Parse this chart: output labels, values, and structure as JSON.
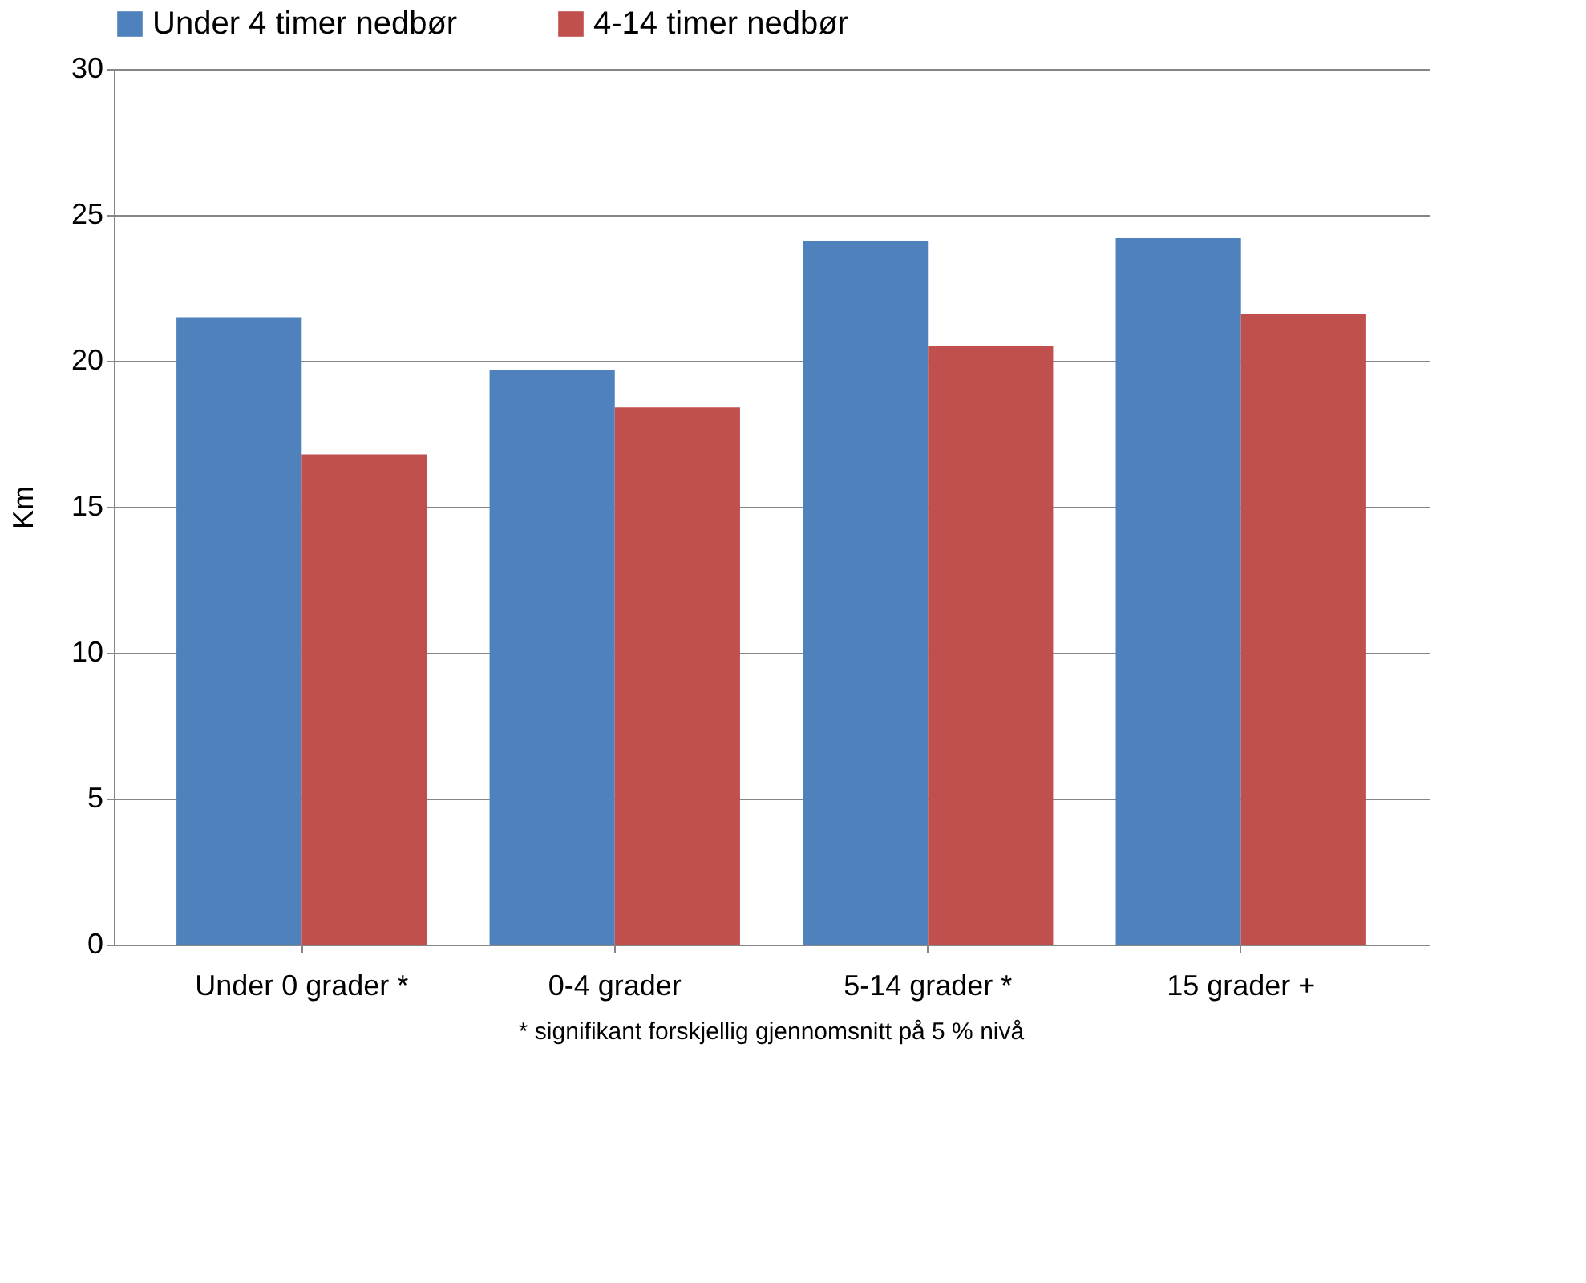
{
  "chart_data": {
    "type": "bar",
    "categories": [
      "Under 0 grader *",
      "0-4 grader",
      "5-14 grader *",
      "15 grader +"
    ],
    "series": [
      {
        "name": "Under 4 timer nedbør",
        "color": "#4f81bd",
        "values": [
          21.5,
          19.7,
          24.1,
          24.2
        ]
      },
      {
        "name": "4-14 timer nedbør",
        "color": "#c0504d",
        "values": [
          16.8,
          18.4,
          20.5,
          21.6
        ]
      }
    ],
    "ylabel": "Km",
    "ylim": [
      0,
      30
    ],
    "yticks": [
      0,
      5,
      10,
      15,
      20,
      25,
      30
    ],
    "grid": "y",
    "legend": "top",
    "annotations": [
      "* signifikant forskjellig gjennomsnitt på 5 % nivå"
    ]
  }
}
